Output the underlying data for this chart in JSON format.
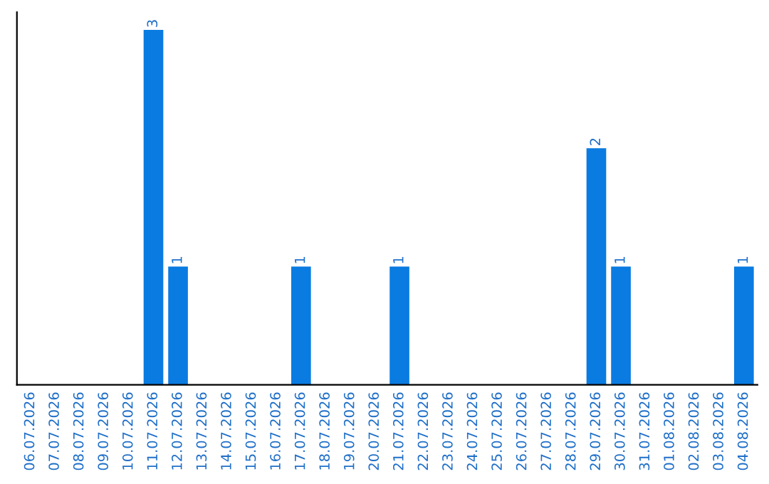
{
  "chart_data": {
    "type": "bar",
    "categories": [
      "06.07.2026",
      "07.07.2026",
      "08.07.2026",
      "09.07.2026",
      "10.07.2026",
      "11.07.2026",
      "12.07.2026",
      "13.07.2026",
      "14.07.2026",
      "15.07.2026",
      "16.07.2026",
      "17.07.2026",
      "18.07.2026",
      "19.07.2026",
      "20.07.2026",
      "21.07.2026",
      "22.07.2026",
      "23.07.2026",
      "24.07.2026",
      "25.07.2026",
      "26.07.2026",
      "27.07.2026",
      "28.07.2026",
      "29.07.2026",
      "30.07.2026",
      "31.07.2026",
      "01.08.2026",
      "02.08.2026",
      "03.08.2026",
      "04.08.2026"
    ],
    "values": [
      0,
      0,
      0,
      0,
      0,
      3,
      1,
      0,
      0,
      0,
      0,
      1,
      0,
      0,
      0,
      1,
      0,
      0,
      0,
      0,
      0,
      0,
      0,
      2,
      1,
      0,
      0,
      0,
      0,
      1
    ],
    "value_labels": [
      null,
      null,
      null,
      null,
      null,
      "3",
      "1",
      null,
      null,
      null,
      null,
      "1",
      null,
      null,
      null,
      "1",
      null,
      null,
      null,
      null,
      null,
      null,
      null,
      "2",
      "1",
      null,
      null,
      null,
      null,
      "1"
    ],
    "color": "#0a7be0",
    "tick_labels": "x",
    "grid": false,
    "legend": false
  }
}
